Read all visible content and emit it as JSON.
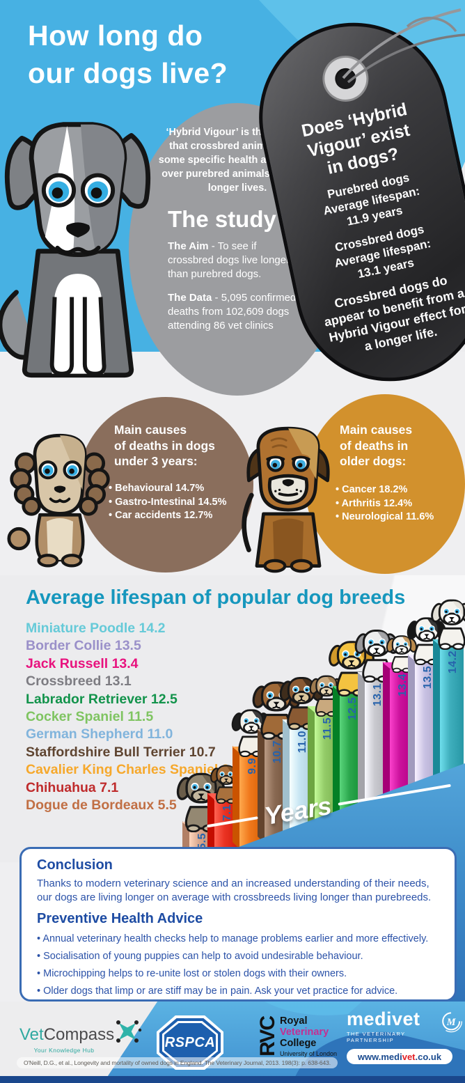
{
  "header": {
    "title_line1": "How long do",
    "title_line2": "our dogs live?"
  },
  "study_circle": {
    "intro": "‘Hybrid Vigour’ is the concept that crossbred animals have some specific health advantages over purebred animals, such as longer lives.",
    "heading": "The study",
    "aim_label": "The Aim",
    "aim_text": "- To see if crossbred dogs live longer than purebred dogs.",
    "data_label": "The Data",
    "data_text": "- 5,095 confirmed deaths from 102,609 dogs attending 86 vet clinics"
  },
  "dog_tag": {
    "question_line1": "Does ‘Hybrid",
    "question_line2": "Vigour’ exist",
    "question_line3": "in dogs?",
    "purebred": [
      "Purebred dogs",
      "Average lifespan:",
      "11.9 years"
    ],
    "crossbred": [
      "Crossbred dogs",
      "Average lifespan:",
      "13.1 years"
    ],
    "summary": "Crossbred dogs do appear to benefit from a Hybrid Vigour effect for a longer life."
  },
  "causes_young": {
    "title_lines": [
      "Main causes",
      "of deaths in dogs",
      "under 3 years:"
    ],
    "items": [
      "Behavioural 14.7%",
      "Gastro-Intestinal 14.5%",
      "Car accidents 12.7%"
    ]
  },
  "causes_older": {
    "title_lines": [
      "Main causes",
      "of deaths in",
      "older dogs:"
    ],
    "items": [
      "Cancer 18.2%",
      "Arthritis 12.4%",
      "Neurological 11.6%"
    ]
  },
  "chart_data": {
    "type": "bar",
    "title": "Average lifespan of popular dog breeds",
    "xlabel": "Years",
    "unit": "years",
    "ylim": [
      0,
      15
    ],
    "legend_position": "left, descending order",
    "categories": [
      "Dogue de Bordeaux",
      "Chihuahua",
      "Cavalier King Charles Spaniel",
      "Staffordshire Bull Terrier",
      "German Shepherd",
      "Cocker Spaniel",
      "Labrador Retriever",
      "Crossbreed",
      "Jack Russell",
      "Border Collie",
      "Miniature Poodle"
    ],
    "values": [
      5.5,
      7.1,
      9.9,
      10.7,
      11.0,
      11.5,
      12.5,
      13.1,
      13.4,
      13.5,
      14.2
    ],
    "bars": [
      {
        "breed": "Dogue de Bordeaux",
        "value": 5.5,
        "bar_color": "#D8A68C",
        "legend_color": "#C16F44",
        "dog": {
          "body": "#948872",
          "ear": "#6A5D4A",
          "muzzle": "#C3B79E"
        },
        "dog_size": 92
      },
      {
        "breed": "Chihuahua",
        "value": 7.1,
        "bar_color": "#EA3323",
        "legend_color": "#BF2B2C",
        "dog": {
          "body": "#A9713D",
          "ear": "#7E5025",
          "muzzle": "#D8B98E"
        },
        "dog_size": 60
      },
      {
        "breed": "Cavalier King Charles Spaniel",
        "value": 9.9,
        "bar_color": "#F0791D",
        "legend_color": "#F6A82B",
        "dog": {
          "body": "#F3F0E8",
          "ear": "#1E1E1E",
          "muzzle": "#F8F6F0"
        },
        "dog_size": 74
      },
      {
        "breed": "Staffordshire Bull Terrier",
        "value": 10.7,
        "bar_color": "#8A6A53",
        "legend_color": "#5F4531",
        "dog": {
          "body": "#A06A38",
          "ear": "#5C3B20",
          "muzzle": "#E9E4D8"
        },
        "dog_size": 90
      },
      {
        "breed": "German Shepherd",
        "value": 11.0,
        "bar_color": "#C7E6F3",
        "legend_color": "#81B4DC",
        "dog": {
          "body": "#8A5A33",
          "ear": "#3F2D1C",
          "muzzle": "#D9C49A"
        },
        "dog_size": 82
      },
      {
        "breed": "Cocker Spaniel",
        "value": 11.5,
        "bar_color": "#93CB68",
        "legend_color": "#7FC461",
        "dog": {
          "body": "#C9A97E",
          "ear": "#9F7B4F",
          "muzzle": "#E8D7B4"
        },
        "dog_size": 64
      },
      {
        "breed": "Labrador Retriever",
        "value": 12.5,
        "bar_color": "#2AA64C",
        "legend_color": "#12934B",
        "dog": {
          "body": "#F4C340",
          "ear": "#D1992A",
          "muzzle": "#F7DE9C"
        },
        "dog_size": 86
      },
      {
        "breed": "Crossbreed",
        "value": 13.1,
        "bar_color": "#C9C9CF",
        "legend_color": "#7D7C82",
        "dog": {
          "body": "#EDEDED",
          "ear": "#98989B",
          "muzzle": "#FFFFFF"
        },
        "dog_size": 82
      },
      {
        "breed": "Jack Russell",
        "value": 13.4,
        "bar_color": "#CB119C",
        "legend_color": "#E8127E",
        "dog": {
          "body": "#F6F3EC",
          "ear": "#BA8A4C",
          "muzzle": "#FAF8F3"
        },
        "dog_size": 58
      },
      {
        "breed": "Border Collie",
        "value": 13.5,
        "bar_color": "#C8C1E3",
        "legend_color": "#9A90C9",
        "dog": {
          "body": "#F5F3EE",
          "ear": "#161616",
          "muzzle": "#FFFFFF"
        },
        "dog_size": 74
      },
      {
        "breed": "Miniature Poodle",
        "value": 14.2,
        "bar_color": "#3FAFBD",
        "legend_color": "#66CAD8",
        "dog": {
          "body": "#F4F2ED",
          "ear": "#E4E1D7",
          "muzzle": "#FFFFFF"
        },
        "dog_size": 78
      }
    ]
  },
  "conclusion_box": {
    "heading": "Conclusion",
    "text": "Thanks to modern veterinary science and an increased understanding of their needs, our dogs are living longer on average with crossbreeds living longer than purebreeds.",
    "advice_heading": "Preventive Health Advice",
    "advice_items": [
      "Annual veterinary health checks help to manage problems earlier and more effectively.",
      "Socialisation of young puppies can help to avoid undesirable behaviour.",
      "Microchipping helps to re-unite lost or stolen dogs with their owners.",
      "Older dogs that limp or are stiff may be in pain. Ask your vet practice for advice."
    ]
  },
  "footer": {
    "vetcompass": {
      "name_part1": "Vet",
      "name_part2": "Compass",
      "tagline": "Your Knowledge Hub"
    },
    "rspca": {
      "label": "RSPCA"
    },
    "rvc": {
      "abbr": "RVC",
      "line1": "Royal",
      "line2": "Veterinary",
      "line3": "College",
      "line4": "University of London"
    },
    "medivet": {
      "name": "medivet",
      "tagline": "THE VETERINARY PARTNERSHIP",
      "url_part1": "www.medi",
      "url_part2": "vet",
      "url_part3": ".co.uk"
    },
    "citation": "O'Neill, D.G., et al., Longevity and mortality of owned dogs in England. The Veterinary Journal, 2013. 198(3): p. 638-643."
  },
  "colors": {
    "sky_blue": "#47B1E3",
    "sky_light_blue": "#5EC1EA",
    "study_circle_gray": "#9C9DA0",
    "tag_dark": "#2E2E30",
    "young_circle_brown": "#8A6E5C",
    "older_circle_orange": "#D2912D",
    "chart_title_teal": "#1697BD",
    "bar_value_blue": "#2763AC",
    "platform_blue": "#4190CC",
    "conclusion_text_blue": "#2B52A8",
    "footer_navy": "#1A478C"
  }
}
